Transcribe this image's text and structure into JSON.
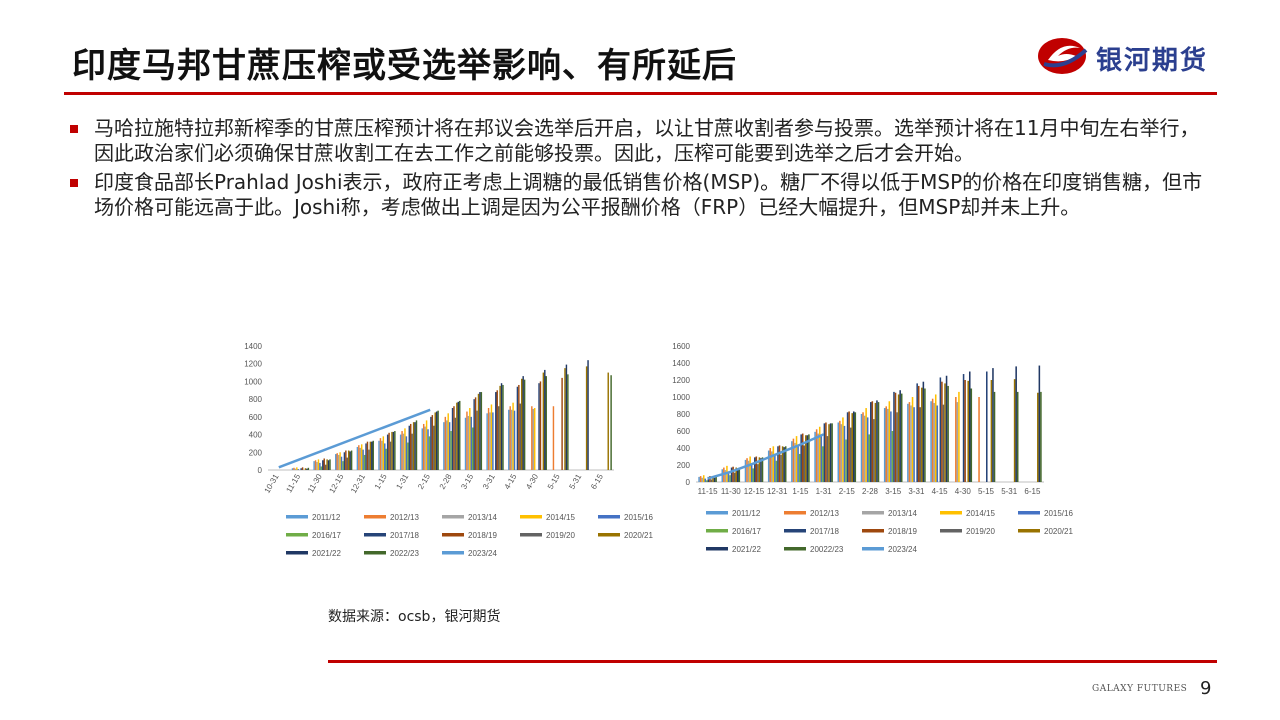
{
  "page": {
    "title": "印度马邦甘蔗压榨或受选举影响、有所延后",
    "logo_text": "银河期货",
    "bullets": [
      "马哈拉施特拉邦新榨季的甘蔗压榨预计将在邦议会选举后开启，以让甘蔗收割者参与投票。选举预计将在11月中旬左右举行，因此政治家们必须确保甘蔗收割工在去工作之前能够投票。因此，压榨可能要到选举之后才会开始。",
      "印度食品部长Prahlad  Joshi表示，政府正考虑上调糖的最低销售价格(MSP)。糖厂不得以低于MSP的价格在印度销售糖，但市场价格可能远高于此。Joshi称，考虑做出上调是因为公平报酬价格（FRP）已经大幅提升，但MSP却并未上升。"
    ],
    "source": "数据来源：ocsb，银河期货",
    "footer_brand": "GALAXY FUTURES",
    "page_number": "9"
  },
  "colors": {
    "accent_red": "#c00000",
    "logo_blue": "#2b3f8f"
  },
  "chart_data": [
    {
      "type": "bar",
      "title": "",
      "xlabel": "",
      "ylabel": "",
      "ylim": [
        0,
        1400
      ],
      "yticks": [
        0,
        200,
        400,
        600,
        800,
        1000,
        1200,
        1400
      ],
      "categories": [
        "10-31",
        "11-15",
        "11-30",
        "12-15",
        "12-31",
        "1-15",
        "1-31",
        "2-15",
        "2-28",
        "3-15",
        "3-31",
        "4-15",
        "4-30",
        "5-15",
        "5-31",
        "6-15"
      ],
      "legend_position": "bottom",
      "series": [
        {
          "name": "2011/12",
          "color": "#5b9bd5",
          "values": [
            null,
            20,
            100,
            180,
            260,
            330,
            400,
            470,
            540,
            590,
            640,
            680,
            null,
            null,
            null,
            null
          ]
        },
        {
          "name": "2012/13",
          "color": "#ed7d31",
          "values": [
            null,
            25,
            110,
            190,
            280,
            360,
            440,
            520,
            600,
            660,
            700,
            720,
            720,
            720,
            null,
            null
          ]
        },
        {
          "name": "2013/14",
          "color": "#a5a5a5",
          "values": [
            null,
            15,
            90,
            170,
            250,
            330,
            410,
            490,
            560,
            610,
            650,
            680,
            690,
            null,
            null,
            null
          ]
        },
        {
          "name": "2014/15",
          "color": "#ffc000",
          "values": [
            null,
            30,
            120,
            200,
            290,
            380,
            470,
            560,
            640,
            700,
            740,
            760,
            700,
            null,
            null,
            null
          ]
        },
        {
          "name": "2015/16",
          "color": "#4472c4",
          "values": [
            null,
            10,
            80,
            150,
            230,
            300,
            380,
            460,
            540,
            600,
            650,
            670,
            null,
            null,
            null,
            null
          ]
        },
        {
          "name": "2016/17",
          "color": "#70ad47",
          "values": [
            null,
            null,
            40,
            100,
            170,
            240,
            310,
            380,
            440,
            480,
            null,
            null,
            null,
            null,
            null,
            null
          ]
        },
        {
          "name": "2017/18",
          "color": "#264478",
          "values": [
            null,
            20,
            110,
            200,
            300,
            400,
            500,
            600,
            700,
            800,
            880,
            940,
            980,
            null,
            null,
            null
          ]
        },
        {
          "name": "2018/19",
          "color": "#9e480e",
          "values": [
            null,
            30,
            130,
            220,
            320,
            420,
            520,
            620,
            720,
            820,
            900,
            960,
            1000,
            1040,
            null,
            null
          ]
        },
        {
          "name": "2019/20",
          "color": "#636363",
          "values": [
            null,
            null,
            60,
            140,
            230,
            320,
            410,
            500,
            590,
            670,
            720,
            750,
            null,
            null,
            null,
            null
          ]
        },
        {
          "name": "2020/21",
          "color": "#997300",
          "values": [
            null,
            20,
            120,
            220,
            320,
            430,
            540,
            650,
            760,
            860,
            950,
            1030,
            1100,
            1150,
            1170,
            1100
          ]
        },
        {
          "name": "2021/22",
          "color": "#203864",
          "values": [
            null,
            15,
            110,
            210,
            320,
            430,
            540,
            660,
            770,
            880,
            980,
            1060,
            1130,
            1190,
            1240,
            null
          ]
        },
        {
          "name": "2022/23",
          "color": "#43682b",
          "values": [
            null,
            25,
            120,
            220,
            330,
            440,
            560,
            670,
            780,
            880,
            960,
            1020,
            1060,
            1080,
            null,
            1070
          ]
        },
        {
          "name": "2023/24",
          "color": "#5b9bd5",
          "kind": "line",
          "values": [
            30,
            null,
            null,
            null,
            null,
            null,
            null,
            680,
            null,
            null,
            null,
            null,
            null,
            null,
            null,
            null
          ]
        }
      ]
    },
    {
      "type": "bar",
      "title": "",
      "xlabel": "",
      "ylabel": "",
      "ylim": [
        0,
        1600
      ],
      "yticks": [
        0,
        200,
        400,
        600,
        800,
        1000,
        1200,
        1400,
        1600
      ],
      "categories": [
        "11-15",
        "11-30",
        "12-15",
        "12-31",
        "1-15",
        "1-31",
        "2-15",
        "2-28",
        "3-15",
        "3-31",
        "4-15",
        "4-30",
        "5-15",
        "5-31",
        "6-15"
      ],
      "legend_position": "bottom",
      "series": [
        {
          "name": "2011/12",
          "color": "#5b9bd5",
          "values": [
            60,
            150,
            260,
            370,
            480,
            590,
            700,
            800,
            870,
            920,
            950,
            null,
            null,
            null,
            null
          ]
        },
        {
          "name": "2012/13",
          "color": "#ed7d31",
          "values": [
            70,
            170,
            280,
            400,
            510,
            620,
            720,
            820,
            890,
            940,
            980,
            1000,
            1000,
            null,
            null
          ]
        },
        {
          "name": "2013/14",
          "color": "#a5a5a5",
          "values": [
            50,
            140,
            250,
            360,
            460,
            570,
            680,
            780,
            860,
            900,
            930,
            940,
            null,
            null,
            null
          ]
        },
        {
          "name": "2014/15",
          "color": "#ffc000",
          "values": [
            80,
            190,
            300,
            420,
            540,
            650,
            760,
            870,
            950,
            1000,
            1030,
            1060,
            null,
            null,
            null
          ]
        },
        {
          "name": "2015/16",
          "color": "#4472c4",
          "values": [
            40,
            120,
            220,
            330,
            440,
            550,
            660,
            760,
            830,
            880,
            900,
            null,
            null,
            null,
            null
          ]
        },
        {
          "name": "2016/17",
          "color": "#70ad47",
          "values": [
            20,
            80,
            160,
            250,
            330,
            420,
            500,
            560,
            600,
            null,
            null,
            null,
            null,
            null,
            null
          ]
        },
        {
          "name": "2017/18",
          "color": "#264478",
          "values": [
            60,
            170,
            290,
            420,
            560,
            690,
            820,
            940,
            1060,
            1160,
            1230,
            1270,
            1300,
            null,
            null
          ]
        },
        {
          "name": "2018/19",
          "color": "#9e480e",
          "values": [
            70,
            180,
            300,
            430,
            570,
            700,
            830,
            950,
            1050,
            1130,
            1180,
            1200,
            null,
            null,
            null
          ]
        },
        {
          "name": "2019/20",
          "color": "#636363",
          "values": [
            30,
            110,
            210,
            320,
            430,
            540,
            640,
            740,
            820,
            880,
            910,
            null,
            null,
            null,
            null
          ]
        },
        {
          "name": "2020/21",
          "color": "#997300",
          "values": [
            60,
            170,
            290,
            420,
            550,
            680,
            810,
            930,
            1030,
            1110,
            1160,
            1190,
            1200,
            1210,
            1050
          ]
        },
        {
          "name": "2021/22",
          "color": "#203864",
          "values": [
            50,
            160,
            280,
            410,
            550,
            690,
            830,
            960,
            1080,
            1180,
            1250,
            1300,
            1340,
            1360,
            1370
          ]
        },
        {
          "name": "20022/23",
          "color": "#43682b",
          "values": [
            60,
            170,
            290,
            420,
            560,
            690,
            820,
            940,
            1040,
            1100,
            1130,
            1100,
            1060,
            1060,
            1060
          ]
        },
        {
          "name": "2023/24",
          "color": "#5b9bd5",
          "kind": "line",
          "values": [
            40,
            120,
            220,
            330,
            440,
            560,
            null,
            null,
            null,
            null,
            null,
            null,
            null,
            null,
            null
          ]
        }
      ]
    }
  ]
}
